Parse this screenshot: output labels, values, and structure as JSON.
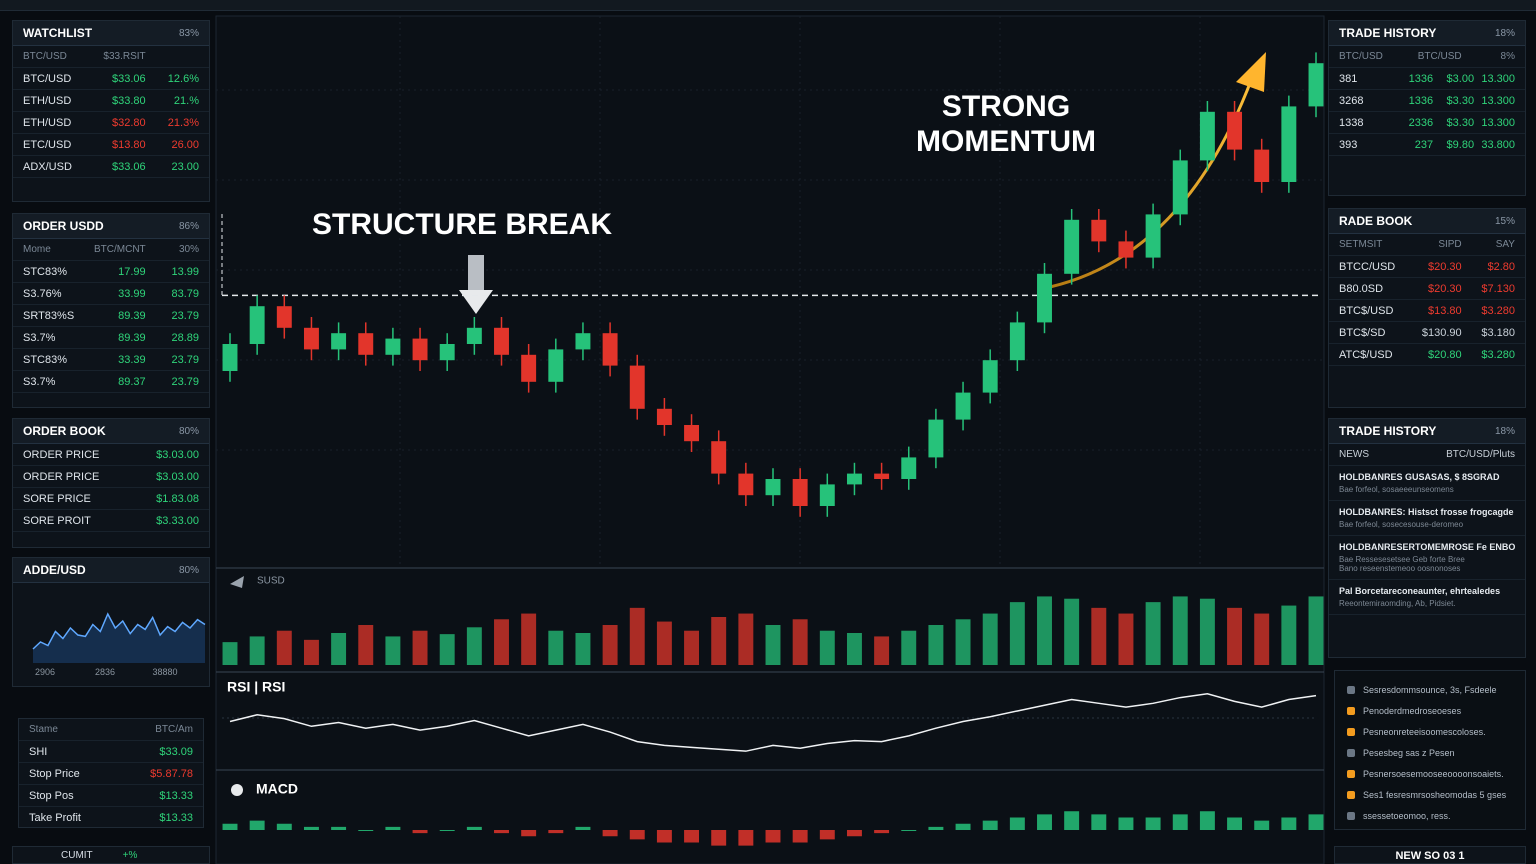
{
  "theme": {
    "up": "#2fd47a",
    "down": "#ee3b2f",
    "neutral": "#c9d1d9"
  },
  "watchlist": {
    "title": "WATCHLIST",
    "badge": "83%",
    "header": [
      "BTC/USD",
      "$33.RSIT",
      ""
    ],
    "rows": [
      [
        "BTC/USD",
        "$33.06",
        "12.6%"
      ],
      [
        "ETH/USD",
        "$33.80",
        "21.%"
      ],
      [
        "ETH/USD",
        "$32.80",
        "21.3%"
      ],
      [
        "ETC/USD",
        "$13.80",
        "26.00"
      ],
      [
        "ADX/USD",
        "$33.06",
        "23.00"
      ]
    ],
    "trends": [
      "up",
      "up",
      "down",
      "down",
      "up"
    ]
  },
  "order_usd": {
    "title": "ORDER USDD",
    "badge": "86%",
    "header": [
      "Mome",
      "BTC/MCNT",
      "30%"
    ],
    "rows": [
      [
        "STC83%",
        "17.99",
        "13.99"
      ],
      [
        "S3.76%",
        "33.99",
        "83.79"
      ],
      [
        "SRT83%S",
        "89.39",
        "23.79"
      ],
      [
        "S3.7%",
        "89.39",
        "28.89"
      ],
      [
        "STC83%",
        "33.39",
        "23.79"
      ],
      [
        "S3.7%",
        "89.37",
        "23.79"
      ]
    ],
    "trends": [
      "up",
      "up",
      "up",
      "up",
      "up",
      "up"
    ]
  },
  "order_book": {
    "title": "ORDER BOOK",
    "badge": "80%",
    "rows": [
      [
        "ORDER PRICE",
        "$3.03.00"
      ],
      [
        "ORDER PRICE",
        "$3.03.00"
      ],
      [
        "SORE PRICE",
        "$1.83.08"
      ],
      [
        "SORE PROIT",
        "$3.33.00"
      ]
    ],
    "trends": [
      "up",
      "up",
      "up",
      "up"
    ]
  },
  "adde_usd": {
    "title": "ADDE/USD",
    "badge": "80%",
    "values": [
      20,
      30,
      25,
      45,
      35,
      50,
      40,
      38,
      55,
      45,
      70,
      50,
      60,
      42,
      55,
      48,
      65,
      40,
      52,
      45,
      58,
      50,
      62,
      55
    ],
    "ylim": [
      0,
      100
    ],
    "axis_labels": [
      "2906",
      "2836",
      "38880"
    ]
  },
  "stops": {
    "header": [
      "Stame",
      "BTC/Am"
    ],
    "rows": [
      [
        "SHI",
        "$33.09"
      ],
      [
        "Stop Price",
        "$5.87.78"
      ],
      [
        "Stop Pos",
        "$13.33"
      ],
      [
        "Take Profit",
        "$13.33"
      ]
    ],
    "trends": [
      "up",
      "down",
      "up",
      "up"
    ]
  },
  "bottom_left": {
    "label": "CUMIT",
    "badge": "+%"
  },
  "trade_history": {
    "title": "TRADE HISTORY",
    "badge": "18%",
    "header": [
      "BTC/USD",
      "BTC/USD",
      "8%"
    ],
    "rows": [
      [
        "381",
        "1336",
        "$3.00",
        "13.300"
      ],
      [
        "3268",
        "1336",
        "$3.30",
        "13.300"
      ],
      [
        "1338",
        "2336",
        "$3.30",
        "13.300"
      ],
      [
        "393",
        "237",
        "$9.80",
        "33.800"
      ]
    ],
    "trends": [
      "up",
      "up",
      "up",
      "up"
    ]
  },
  "rade_book": {
    "title": "RADE BOOK",
    "badge": "15%",
    "header": [
      "SETMSIT",
      "SIPD",
      "SAY"
    ],
    "rows": [
      [
        "BTCC/USD",
        "$20.30",
        "$2.80"
      ],
      [
        "B80.0SD",
        "$20.30",
        "$7.130"
      ],
      [
        "BTC$/USD",
        "$13.80",
        "$3.280"
      ],
      [
        "BTC$/SD",
        "$130.90",
        "$3.180"
      ],
      [
        "ATC$/USD",
        "$20.80",
        "$3.280"
      ]
    ],
    "trends": [
      "down",
      "down",
      "down",
      "neutral",
      "up"
    ]
  },
  "news": {
    "title": "TRADE HISTORY",
    "badge": "18%",
    "header": [
      "NEWS",
      "BTC/USD/Pluts"
    ],
    "items": [
      {
        "headline": "HOLDBANRES GUSASAS, $ 8SGRAD",
        "lines": [
          "Bae forfeol, sosaeeeunseomens"
        ]
      },
      {
        "headline": "HOLDBANRES: Histsct frosse frogcagde",
        "lines": [
          "Bae forfeol, sosecesouse-deromeo"
        ]
      },
      {
        "headline": "HOLDBANRESERTOMEMROSE Fe ENBOSKRES.",
        "lines": [
          "Bae Ressesesetsee Geb forte Bree",
          "Bano reseenstemeoo oosnonoses"
        ]
      },
      {
        "headline": "Pal Borcetareconeaunter, ehrtealedes",
        "lines": [
          "Reeontemiraomding, Ab, Pidsiet."
        ]
      }
    ]
  },
  "alerts": {
    "items": [
      "Sesresdommsounce, 3s, Fsdeele",
      "Penoderdmedroseoeses",
      "Pesneonreteeisoomescoloses.",
      "Pesesbeg sas z Pesen",
      "Pesnersoesemooseeoooonsoaiets.",
      "Ses1 fesresmrsosheomodas 5 gses",
      "ssessetoeomoo, ress."
    ]
  },
  "footer_right": {
    "label": "NEW SO 03 1"
  },
  "chart_data": {
    "type": "candlestick",
    "annotations": {
      "structure_break": "STRUCTURE BREAK",
      "momentum": [
        "STRONG",
        "MOMENTUM"
      ]
    },
    "ylim": [
      0,
      100
    ],
    "break_level": 49,
    "open": [
      35,
      40,
      47,
      43,
      39,
      42,
      38,
      41,
      37,
      40,
      43,
      38,
      33,
      39,
      42,
      36,
      28,
      25,
      22,
      16,
      12,
      15,
      10,
      14,
      16,
      15,
      19,
      26,
      31,
      37,
      44,
      53,
      63,
      59,
      56,
      64,
      74,
      83,
      76,
      70,
      84
    ],
    "high": [
      42,
      49,
      49,
      45,
      44,
      44,
      43,
      43,
      42,
      45,
      45,
      40,
      41,
      44,
      44,
      38,
      30,
      27,
      24,
      18,
      17,
      17,
      16,
      18,
      18,
      21,
      28,
      33,
      39,
      46,
      55,
      65,
      65,
      61,
      66,
      76,
      85,
      85,
      78,
      86,
      94
    ],
    "low": [
      33,
      38,
      41,
      37,
      37,
      36,
      36,
      35,
      35,
      38,
      36,
      31,
      31,
      37,
      34,
      26,
      23,
      20,
      14,
      10,
      10,
      8,
      8,
      12,
      13,
      13,
      17,
      24,
      29,
      35,
      42,
      51,
      57,
      54,
      54,
      62,
      72,
      74,
      68,
      68,
      82
    ],
    "close": [
      40,
      47,
      43,
      39,
      42,
      38,
      41,
      37,
      40,
      43,
      38,
      33,
      39,
      42,
      36,
      28,
      25,
      22,
      16,
      12,
      15,
      10,
      14,
      16,
      15,
      19,
      26,
      31,
      37,
      44,
      53,
      63,
      59,
      56,
      64,
      74,
      83,
      76,
      70,
      84,
      92
    ],
    "colors": {
      "up": "#26c27a",
      "down": "#e2352b"
    },
    "volume": {
      "label": "SUSD",
      "ylim": [
        0,
        70
      ],
      "values": [
        20,
        25,
        30,
        22,
        28,
        35,
        25,
        30,
        27,
        33,
        40,
        45,
        30,
        28,
        35,
        50,
        38,
        30,
        42,
        45,
        35,
        40,
        30,
        28,
        25,
        30,
        35,
        40,
        45,
        55,
        60,
        58,
        50,
        45,
        55,
        60,
        58,
        50,
        45,
        52,
        60
      ]
    },
    "rsi": {
      "label": "RSI | RSI",
      "ylim": [
        20,
        90
      ],
      "values": [
        55,
        62,
        58,
        50,
        54,
        48,
        52,
        46,
        50,
        56,
        48,
        40,
        46,
        52,
        44,
        34,
        30,
        28,
        26,
        24,
        30,
        27,
        32,
        35,
        34,
        40,
        48,
        55,
        60,
        66,
        72,
        78,
        74,
        70,
        74,
        80,
        84,
        76,
        70,
        78,
        82
      ]
    },
    "macd": {
      "label": "MACD",
      "ylim": [
        -8,
        8
      ],
      "values": [
        2,
        3,
        2,
        1,
        1,
        0,
        1,
        -1,
        0,
        1,
        -1,
        -2,
        -1,
        1,
        -2,
        -3,
        -4,
        -4,
        -5,
        -5,
        -4,
        -4,
        -3,
        -2,
        -1,
        0,
        1,
        2,
        3,
        4,
        5,
        6,
        5,
        4,
        4,
        5,
        6,
        4,
        3,
        4,
        5
      ]
    }
  }
}
